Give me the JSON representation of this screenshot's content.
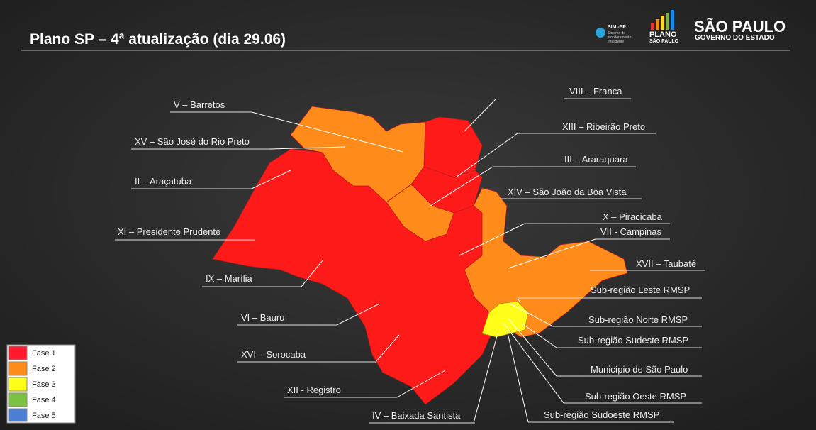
{
  "header": {
    "title": "Plano SP – 4ª atualização (dia 29.06)",
    "logos": {
      "simi": "SIMI-SP",
      "simi_sub": [
        "Sistema de",
        "Monitoramento",
        "Inteligente"
      ],
      "plano": "PLANO",
      "plano_sub": "SÃO PAULO",
      "gov": "SÃO PAULO",
      "gov_sub": "GOVERNO DO ESTADO"
    }
  },
  "regions": [
    "V – Barretos",
    "XV – São José do Rio Preto",
    "II – Araçatuba",
    "XI – Presidente Prudente",
    "IX – Marília",
    "VI – Bauru",
    "XVI – Sorocaba",
    "XII - Registro",
    "IV – Baixada Santista",
    "VIII – Franca",
    "XIII – Ribeirão Preto",
    "III – Araraquara",
    "XIV – São João da Boa Vista",
    "X – Piracicaba",
    "VII - Campinas",
    "XVII – Taubaté",
    "Sub-região Leste RMSP",
    "Sub-região Norte RMSP",
    "Sub-região Sudeste RMSP",
    "Município de São Paulo",
    "Sub-região Oeste RMSP",
    "Sub-região Sudoeste RMSP"
  ],
  "legend": [
    "Fase 1",
    "Fase 2",
    "Fase 3",
    "Fase 4",
    "Fase 5"
  ]
}
